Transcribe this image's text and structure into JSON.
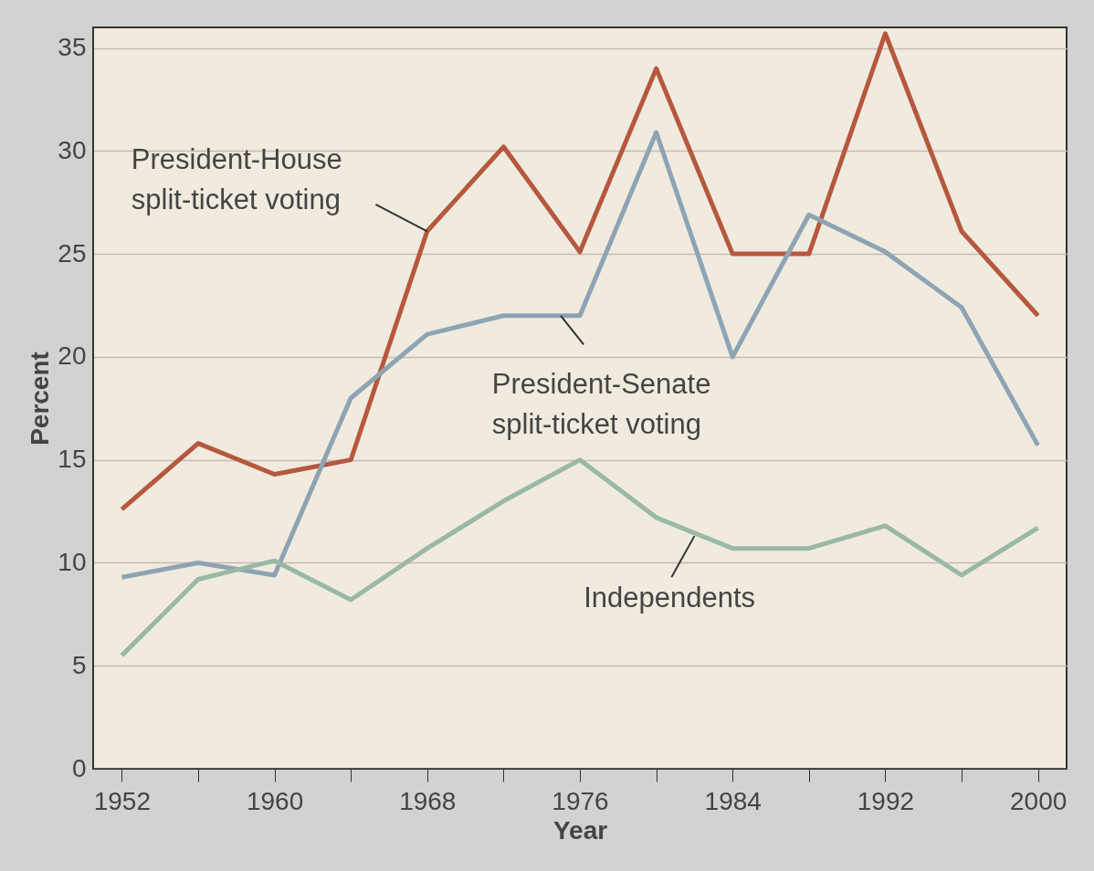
{
  "chart_data": {
    "type": "line",
    "xlabel": "Year",
    "ylabel": "Percent",
    "x": [
      1952,
      1956,
      1960,
      1964,
      1968,
      1972,
      1976,
      1980,
      1984,
      1988,
      1992,
      1996,
      2000
    ],
    "series": [
      {
        "color": "#b5583f",
        "values": [
          12.6,
          15.8,
          14.3,
          15.0,
          26.1,
          30.2,
          25.1,
          34.0,
          25.0,
          25.0,
          35.7,
          26.1,
          22.0
        ]
      },
      {
        "color": "#8ea4b4",
        "values": [
          9.3,
          10.0,
          9.4,
          18.0,
          21.1,
          22.0,
          22.0,
          30.9,
          20.0,
          26.9,
          25.1,
          22.4,
          15.7
        ]
      },
      {
        "color": "#9ab8a6",
        "values": [
          5.5,
          9.2,
          10.1,
          8.2,
          10.7,
          13.0,
          15.0,
          12.2,
          10.7,
          10.7,
          11.8,
          9.4,
          11.7
        ]
      }
    ],
    "annotations": [
      {
        "text": "President-House split-ticket voting",
        "x": 1968,
        "y": 26.1
      },
      {
        "text": "President-Senate split-ticket voting",
        "x": 1975,
        "y": 22.0
      },
      {
        "text": "Independents",
        "x": 1982,
        "y": 11.3
      }
    ],
    "xlim": [
      1950.5,
      2001.5
    ],
    "xticks": [
      1952,
      {
        "value": 1956,
        "label": null
      },
      1960,
      {
        "value": 1964,
        "label": null
      },
      1968,
      {
        "value": 1972,
        "label": null
      },
      1976,
      {
        "value": 1980,
        "label": null
      },
      1984,
      {
        "value": 1988,
        "label": null
      },
      1992,
      {
        "value": 1996,
        "label": null
      },
      2000
    ],
    "ylim": [
      0,
      36
    ],
    "yticks": [
      0,
      5,
      10,
      15,
      20,
      25,
      30,
      35
    ],
    "grid": "y",
    "legend": false,
    "marker": "none",
    "line_style": "solid"
  }
}
